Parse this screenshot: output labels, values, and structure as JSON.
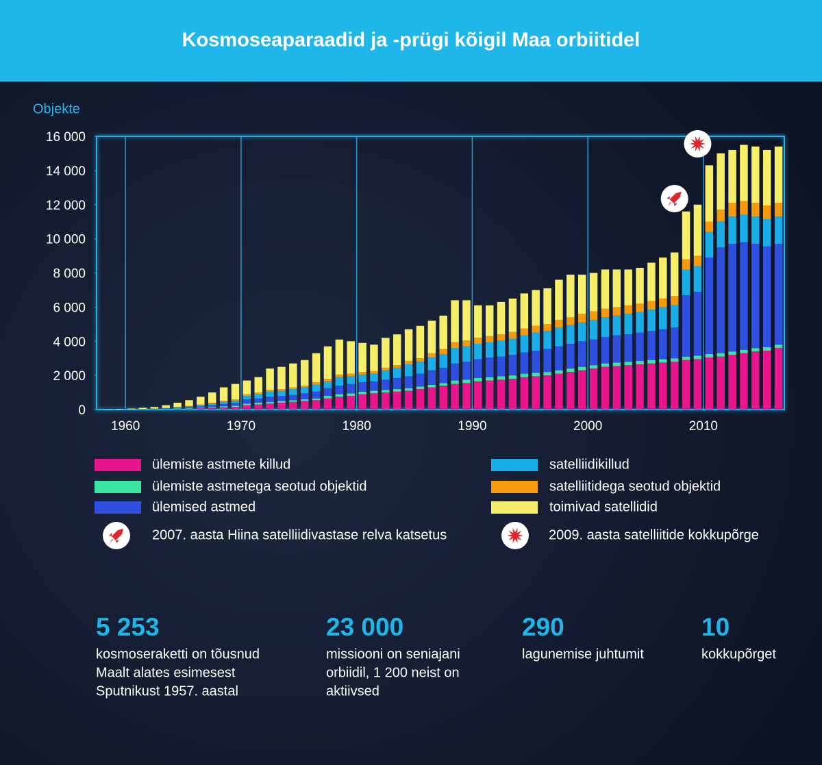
{
  "chart_data": {
    "type": "stacked-bar",
    "title": "Kosmoseaparaadid ja -prügi kõigil Maa orbiitidel",
    "y_label": "Objekte",
    "x": [
      1958,
      1959,
      1960,
      1961,
      1962,
      1963,
      1964,
      1965,
      1966,
      1967,
      1968,
      1969,
      1970,
      1971,
      1972,
      1973,
      1974,
      1975,
      1976,
      1977,
      1978,
      1979,
      1980,
      1981,
      1982,
      1983,
      1984,
      1985,
      1986,
      1987,
      1988,
      1989,
      1990,
      1991,
      1992,
      1993,
      1994,
      1995,
      1996,
      1997,
      1998,
      1999,
      2000,
      2001,
      2002,
      2003,
      2004,
      2005,
      2006,
      2007,
      2008,
      2009,
      2010,
      2011,
      2012,
      2013,
      2014,
      2015,
      2016
    ],
    "xlim": [
      1957.5,
      2017
    ],
    "xticks": [
      1960,
      1970,
      1980,
      1990,
      2000,
      2010
    ],
    "ylim": [
      0,
      16000
    ],
    "yticks": [
      0,
      {
        "value": 2000,
        "label": "2 000"
      },
      {
        "value": 4000,
        "label": "4 000"
      },
      {
        "value": 6000,
        "label": "6 000"
      },
      {
        "value": 8000,
        "label": "8 000"
      },
      {
        "value": 10000,
        "label": "10 000"
      },
      {
        "value": 12000,
        "label": "12 000"
      },
      {
        "value": 14000,
        "label": "14 000"
      },
      {
        "value": 16000,
        "label": "16 000"
      }
    ],
    "grid": "x",
    "legend": "bottom",
    "series": [
      {
        "name": "ülemiste astmete killud",
        "color": "#e8158c",
        "values": [
          2,
          4,
          6,
          10,
          15,
          25,
          40,
          55,
          75,
          100,
          130,
          150,
          250,
          300,
          350,
          400,
          450,
          500,
          550,
          650,
          750,
          800,
          900,
          950,
          1000,
          1050,
          1100,
          1200,
          1300,
          1400,
          1500,
          1550,
          1650,
          1700,
          1750,
          1800,
          1900,
          1950,
          2000,
          2100,
          2200,
          2300,
          2400,
          2500,
          2550,
          2600,
          2650,
          2700,
          2750,
          2800,
          2900,
          2950,
          3050,
          3100,
          3200,
          3300,
          3400,
          3450,
          3600
        ]
      },
      {
        "name": "ülemiste astmetega seotud objektid",
        "color": "#3de6a0",
        "values": [
          1,
          2,
          3,
          5,
          8,
          12,
          20,
          28,
          38,
          50,
          65,
          75,
          100,
          100,
          100,
          100,
          100,
          100,
          100,
          150,
          150,
          150,
          150,
          150,
          150,
          150,
          150,
          150,
          150,
          150,
          200,
          200,
          200,
          200,
          200,
          200,
          200,
          200,
          200,
          200,
          200,
          200,
          200,
          200,
          200,
          200,
          200,
          200,
          200,
          200,
          200,
          200,
          200,
          200,
          200,
          200,
          200,
          200,
          200
        ]
      },
      {
        "name": "ülemised astmed",
        "color": "#2f4fe0",
        "values": [
          2,
          4,
          6,
          10,
          15,
          25,
          40,
          55,
          75,
          100,
          130,
          150,
          250,
          250,
          300,
          300,
          300,
          350,
          400,
          450,
          500,
          550,
          550,
          550,
          600,
          650,
          700,
          750,
          850,
          900,
          1000,
          1050,
          1100,
          1150,
          1150,
          1200,
          1250,
          1300,
          1350,
          1400,
          1450,
          1500,
          1500,
          1550,
          1600,
          1600,
          1650,
          1700,
          1750,
          1800,
          3600,
          3750,
          5650,
          6200,
          6300,
          6300,
          6100,
          5900,
          5900
        ]
      },
      {
        "name": "satelliidikillud",
        "color": "#1aaee8",
        "values": [
          2,
          4,
          6,
          10,
          15,
          25,
          40,
          55,
          75,
          100,
          130,
          150,
          200,
          250,
          300,
          300,
          350,
          350,
          400,
          400,
          500,
          450,
          450,
          450,
          550,
          600,
          700,
          700,
          750,
          800,
          900,
          900,
          900,
          900,
          950,
          950,
          1000,
          1050,
          1050,
          1100,
          1100,
          1100,
          1150,
          1150,
          1150,
          1200,
          1200,
          1250,
          1300,
          1300,
          1500,
          1500,
          1500,
          1500,
          1600,
          1600,
          1600,
          1600,
          1600
        ]
      },
      {
        "name": "satelliitidega seotud objektid",
        "color": "#f59a0c",
        "values": [
          1,
          2,
          3,
          5,
          7,
          13,
          20,
          27,
          37,
          50,
          65,
          75,
          100,
          100,
          100,
          100,
          100,
          100,
          150,
          150,
          150,
          150,
          150,
          150,
          150,
          150,
          200,
          200,
          250,
          300,
          350,
          350,
          350,
          350,
          350,
          400,
          400,
          400,
          400,
          450,
          450,
          500,
          500,
          500,
          500,
          500,
          500,
          500,
          500,
          550,
          600,
          600,
          600,
          700,
          800,
          800,
          800,
          800,
          800
        ]
      },
      {
        "name": "toimivad satellidid",
        "color": "#f7ef6a",
        "values": [
          12,
          24,
          36,
          60,
          90,
          150,
          240,
          330,
          450,
          600,
          780,
          900,
          800,
          900,
          1250,
          1300,
          1400,
          1500,
          1700,
          1900,
          2050,
          1900,
          1700,
          1550,
          1750,
          1800,
          1850,
          1900,
          1900,
          1950,
          2450,
          2350,
          1900,
          1800,
          1900,
          1950,
          2050,
          2100,
          2100,
          2350,
          2500,
          2300,
          2250,
          2300,
          2200,
          2100,
          2100,
          2250,
          2400,
          2550,
          2800,
          3000,
          3300,
          3300,
          3100,
          3300,
          3300,
          3250,
          3300
        ]
      }
    ],
    "annotations": [
      {
        "year": 2007,
        "icon": "rocket",
        "label": "2007. aasta Hiina satelliidivastase relva katsetus"
      },
      {
        "year": 2009,
        "icon": "collision",
        "label": "2009. aasta satelliitide kokkupõrge"
      }
    ]
  },
  "stats": [
    {
      "value": "5 253",
      "lines": [
        "kosmoseraketti on tõusnud",
        "Maalt alates esimesest",
        "Sputnikust 1957. aastal"
      ]
    },
    {
      "value": "23 000",
      "lines": [
        "missiooni on seniajani",
        "orbiidil, 1 200 neist on",
        "aktiivsed"
      ]
    },
    {
      "value": "290",
      "lines": [
        "lagunemise juhtumit"
      ]
    },
    {
      "value": "10",
      "lines": [
        "kokkupõrget"
      ]
    }
  ]
}
